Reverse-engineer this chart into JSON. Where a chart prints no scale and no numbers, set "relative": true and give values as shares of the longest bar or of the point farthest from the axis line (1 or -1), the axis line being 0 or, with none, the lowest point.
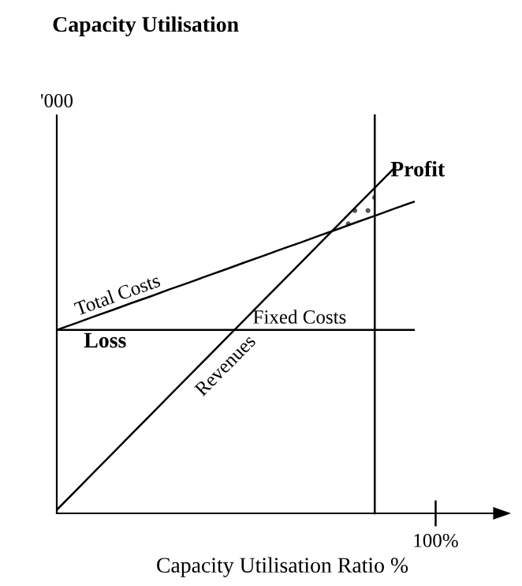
{
  "chart_data": {
    "type": "line",
    "title": "Capacity Utilisation",
    "xlabel": "Capacity Utilisation Ratio %",
    "ylabel": "'000",
    "relative": true,
    "categories": [
      null,
      null,
      null,
      null,
      null,
      null,
      null,
      null,
      null,
      null,
      null,
      null,
      null,
      null,
      null,
      null,
      null,
      null,
      null,
      null,
      null,
      null,
      null,
      null,
      null
    ],
    "series": [
      {
        "name": "Total Costs",
        "color": "#000000",
        "values": [
          0.53,
          0.549,
          0.569,
          0.588,
          0.608,
          0.627,
          0.647,
          0.666,
          0.686,
          0.705,
          0.725,
          0.744,
          0.764,
          0.783,
          0.803,
          0.822,
          0.842,
          0.861,
          0.881,
          0.9,
          null,
          null,
          null,
          null,
          null
        ]
      },
      {
        "name": "Revenues",
        "color": "#000000",
        "values": [
          0.01,
          0.065,
          0.12,
          0.175,
          0.23,
          0.285,
          0.34,
          0.395,
          0.45,
          0.505,
          0.56,
          0.615,
          0.67,
          0.725,
          0.78,
          0.835,
          0.89,
          0.945,
          1.0,
          null,
          null,
          null,
          null,
          null,
          null
        ]
      },
      {
        "name": "Fixed Costs",
        "color": "#000000",
        "values": [
          0.53,
          0.53,
          0.53,
          0.53,
          0.53,
          0.53,
          0.53,
          0.53,
          0.53,
          0.53,
          0.53,
          0.53,
          0.53,
          0.53,
          0.53,
          0.53,
          0.53,
          0.53,
          0.53,
          0.53,
          null,
          null,
          null,
          null,
          null
        ]
      }
    ],
    "annotations": [
      "Profit",
      "Loss",
      "100%"
    ],
    "legend": false,
    "marker": "none",
    "line_style": "solid"
  }
}
